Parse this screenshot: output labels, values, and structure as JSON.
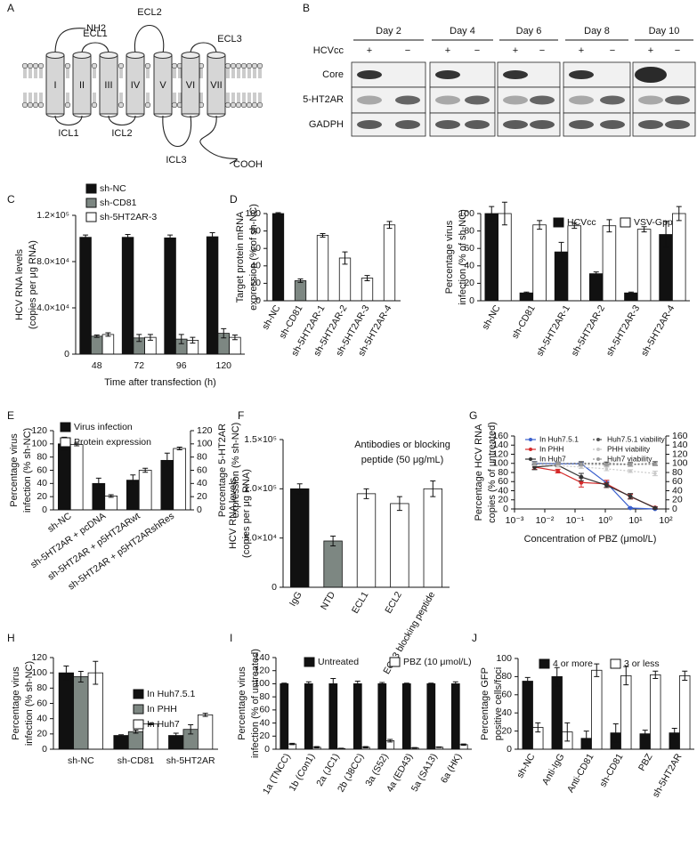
{
  "diagram": {
    "label": "A",
    "terminals": [
      "NH2",
      "COOH"
    ],
    "loops": [
      "ECL1",
      "ECL2",
      "ECL3",
      "ICL1",
      "ICL2",
      "ICL3"
    ],
    "helices": [
      "I",
      "II",
      "III",
      "IV",
      "V",
      "VI",
      "VII"
    ]
  },
  "blot": {
    "label": "B",
    "days": [
      "Day 2",
      "Day 4",
      "Day 6",
      "Day 8",
      "Day 10"
    ],
    "rows": [
      "HCVcc",
      "Core",
      "5-HT2AR",
      "GADPH"
    ],
    "signs": [
      "+",
      "−"
    ]
  },
  "chart_data": [
    {
      "type": "bar",
      "label": "C",
      "ylabel": [
        "HCV RNA levels",
        "(copies per μg RNA)"
      ],
      "xlabel": "Time after transfection (h)",
      "categories": [
        "48",
        "72",
        "96",
        "120"
      ],
      "series": [
        {
          "name": "sh-NC",
          "color": "#111111",
          "values": [
            101000,
            101000,
            100500,
            101500
          ],
          "errors": [
            2000,
            2500,
            2500,
            3500
          ]
        },
        {
          "name": "sh-CD81",
          "color": "#7d8782",
          "values": [
            15500,
            14000,
            13000,
            18000
          ],
          "errors": [
            1000,
            3000,
            4000,
            4000
          ]
        },
        {
          "name": "sh-5HT2AR-3",
          "color": "#ffffff",
          "values": [
            17000,
            14500,
            12000,
            14500
          ],
          "errors": [
            1500,
            2500,
            2500,
            2000
          ]
        }
      ],
      "ylim": [
        0,
        120000
      ],
      "yticks": [
        0,
        {
          "value": 40000,
          "label": "4.0×10⁴"
        },
        {
          "value": 80000,
          "label": "8.0×10⁴"
        },
        {
          "value": 120000,
          "label": "1.2×10⁵"
        }
      ]
    },
    {
      "type": "bar",
      "label": "D",
      "ylabel": [
        "Target protein mRNA",
        "expression (% of sh-NC)"
      ],
      "categories": [
        "sh-NC",
        "sh-CD81",
        "sh-5HT2AR-1",
        "sh-5HT2AR-2",
        "sh-5HT2AR-3",
        "sh-5HT2AR-4"
      ],
      "values": [
        100,
        23,
        75,
        49,
        26,
        87
      ],
      "errors": [
        1,
        2,
        2,
        7,
        3,
        4
      ],
      "colors": [
        "#111111",
        "#7d8782",
        "#ffffff",
        "#ffffff",
        "#ffffff",
        "#ffffff"
      ],
      "ylim": [
        0,
        100
      ],
      "yticks": [
        0,
        20,
        40,
        60,
        80,
        100
      ]
    },
    {
      "type": "bar",
      "ylabel": [
        "Percentage virus",
        "infection (% of sh-NC)"
      ],
      "categories": [
        "sh-NC",
        "sh-CD81",
        "sh-5HT2AR-1",
        "sh-5HT2AR-2",
        "sh-5HT2AR-3",
        "sh-5HT2AR-4"
      ],
      "series": [
        {
          "name": "HCVcc",
          "color": "#111111",
          "values": [
            100,
            9,
            56,
            31,
            9,
            76
          ],
          "errors": [
            8,
            1,
            11,
            2,
            1,
            15
          ]
        },
        {
          "name": "VSV-Gpp",
          "color": "#ffffff",
          "values": [
            100,
            87,
            86,
            86,
            82,
            100
          ],
          "errors": [
            13,
            5,
            3,
            7,
            3,
            8
          ]
        }
      ],
      "ylim": [
        0,
        100
      ],
      "yticks": [
        0,
        20,
        40,
        60,
        80,
        100
      ]
    },
    {
      "type": "bar",
      "label": "E",
      "ylabel": [
        "Percentage virus",
        "infection (% sh-NC)"
      ],
      "y2label": [
        "Percentage 5-HT2AR",
        "expression (% sh-NC)"
      ],
      "categories": [
        "sh-NC",
        "sh-5HT2AR + pcDNA",
        "sh-5HT2AR + p5HT2ARwt",
        "sh-5HT2AR + p5HT2ARshRes"
      ],
      "series": [
        {
          "name": "Virus infection",
          "color": "#111111",
          "values": [
            100,
            40,
            45,
            75
          ],
          "errors": [
            10,
            8,
            8,
            11
          ]
        },
        {
          "name": "Protein expression",
          "color": "#ffffff",
          "axis": "y2",
          "values": [
            99,
            21,
            60,
            93
          ],
          "errors": [
            2,
            2,
            3,
            2
          ]
        }
      ],
      "ylim": [
        0,
        120
      ],
      "yticks": [
        0,
        20,
        40,
        60,
        80,
        100,
        120
      ],
      "y2lim": [
        0,
        120
      ],
      "y2ticks": [
        0,
        20,
        40,
        60,
        80,
        100,
        120
      ]
    },
    {
      "type": "bar",
      "label": "F",
      "ylabel": [
        "HCV RNA levels",
        "(copies per μg RNA)"
      ],
      "annotation": [
        "Antibodies or blocking",
        "peptide (50 μg/mL)"
      ],
      "categories": [
        "IgG",
        "NTD",
        "ECL1",
        "ECL2",
        "ECL3 blocking peptide"
      ],
      "values": [
        100000,
        47000,
        95000,
        85000,
        100000
      ],
      "errors": [
        5000,
        5000,
        5000,
        7000,
        8000
      ],
      "colors": [
        "#111111",
        "#7d8782",
        "#ffffff",
        "#ffffff",
        "#ffffff"
      ],
      "ylim": [
        0,
        150000
      ],
      "yticks": [
        0,
        {
          "value": 50000,
          "label": "5.0×10⁴"
        },
        {
          "value": 100000,
          "label": "1.0×10⁵"
        },
        {
          "value": 150000,
          "label": "1.5×10⁵"
        }
      ]
    },
    {
      "type": "line",
      "label": "G",
      "ylabel": [
        "Percentage HCV RNA",
        "copies (% of untreated)"
      ],
      "xlabel": "Concentration of PBZ (μmol/L)",
      "xscale": "log",
      "x": [
        0.0046,
        0.027,
        0.16,
        1.1,
        6.7,
        44
      ],
      "series": [
        {
          "name": "In Huh7.5.1",
          "color": "#3a5fcd",
          "values": [
            100,
            99,
            99,
            57,
            2,
            0
          ],
          "errors": [
            4,
            3,
            4,
            3,
            1,
            1
          ]
        },
        {
          "name": "In PHH",
          "color": "#d42a2a",
          "values": [
            92,
            83,
            58,
            55,
            27,
            3
          ],
          "errors": [
            5,
            4,
            10,
            8,
            5,
            2
          ]
        },
        {
          "name": "In Huh7",
          "color": "#333333",
          "values": [
            92,
            96,
            70,
            52,
            28,
            2
          ],
          "errors": [
            6,
            3,
            8,
            5,
            6,
            2
          ]
        },
        {
          "name": "Huh7.5.1 viability",
          "color": "#555555",
          "dashed": true,
          "axis": "y2",
          "values": [
            100,
            100,
            100,
            100,
            98,
            100
          ],
          "errors": [
            4,
            3,
            4,
            3,
            4,
            4
          ]
        },
        {
          "name": "PHH viability",
          "color": "#c8c8c8",
          "dashed": true,
          "axis": "y2",
          "values": [
            98,
            95,
            92,
            88,
            83,
            78
          ],
          "errors": [
            3,
            3,
            3,
            4,
            3,
            5
          ]
        },
        {
          "name": "Huh7 viability",
          "color": "#999999",
          "dashed": true,
          "axis": "y2",
          "values": [
            100,
            100,
            98,
            97,
            97,
            98
          ],
          "errors": [
            3,
            3,
            3,
            3,
            3,
            3
          ]
        }
      ],
      "xlim": [
        0.001,
        100
      ],
      "xticks": [
        {
          "value": 0.001,
          "label": "10⁻³"
        },
        {
          "value": 0.01,
          "label": "10⁻²"
        },
        {
          "value": 0.1,
          "label": "10⁻¹"
        },
        {
          "value": 1,
          "label": "10⁰"
        },
        {
          "value": 10,
          "label": "10¹"
        },
        {
          "value": 100,
          "label": "10²"
        }
      ],
      "ylim": [
        0,
        160
      ],
      "yticks": [
        0,
        20,
        40,
        60,
        80,
        100,
        120,
        140,
        160
      ],
      "y2lim": [
        0,
        160
      ],
      "y2ticks": [
        0,
        20,
        40,
        60,
        80,
        100,
        120,
        140,
        160
      ]
    },
    {
      "type": "bar",
      "label": "H",
      "ylabel": [
        "Percentage virus",
        "infection (% sh-NC)"
      ],
      "categories": [
        "sh-NC",
        "sh-CD81",
        "sh-5HT2AR"
      ],
      "series": [
        {
          "name": "In Huh7.5.1",
          "color": "#111111",
          "values": [
            100,
            18,
            18
          ],
          "errors": [
            9,
            1,
            3
          ]
        },
        {
          "name": "In PHH",
          "color": "#7d8782",
          "values": [
            95,
            23,
            26
          ],
          "errors": [
            7,
            2,
            6
          ]
        },
        {
          "name": "In Huh7",
          "color": "#ffffff",
          "values": [
            100,
            33,
            45
          ],
          "errors": [
            15,
            1,
            2
          ]
        }
      ],
      "ylim": [
        0,
        120
      ],
      "yticks": [
        0,
        20,
        40,
        60,
        80,
        100,
        120
      ]
    },
    {
      "type": "bar",
      "label": "I",
      "ylabel": [
        "Percentage virus",
        "infection (% of untreated)"
      ],
      "categories": [
        "1a (TNCC)",
        "1b (Con1)",
        "2a (JC1)",
        "2b (J8CC)",
        "3a (S52)",
        "4a (ED43)",
        "5a (SA13)",
        "6a (HK)"
      ],
      "series": [
        {
          "name": "Untreated",
          "color": "#111111",
          "values": [
            100,
            100,
            100,
            100,
            100,
            100,
            100,
            100
          ],
          "errors": [
            1,
            3,
            8,
            4,
            2,
            1,
            1,
            3
          ]
        },
        {
          "name": "PBZ (10 μmol/L)",
          "color": "#ffffff",
          "values": [
            8,
            3,
            1,
            3,
            13,
            2,
            3,
            7
          ],
          "errors": [
            1,
            1,
            0.5,
            1,
            2,
            0.5,
            0.5,
            1
          ]
        }
      ],
      "ylim": [
        0,
        140
      ],
      "yticks": [
        0,
        20,
        40,
        60,
        80,
        100,
        120,
        140
      ]
    },
    {
      "type": "bar",
      "label": "J",
      "ylabel": [
        "Percentage GFP",
        "positive cells/foci"
      ],
      "categories": [
        "sh-NC",
        "Anti-IgG",
        "Anti-CD81",
        "sh-CD81",
        "PBZ",
        "sh-5HT2AR"
      ],
      "series": [
        {
          "name": "4 or more",
          "color": "#111111",
          "values": [
            75,
            80,
            12,
            18,
            17,
            18
          ],
          "errors": [
            4,
            10,
            8,
            10,
            4,
            5
          ]
        },
        {
          "name": "3 or less",
          "color": "#ffffff",
          "values": [
            24,
            19,
            87,
            81,
            82,
            81
          ],
          "errors": [
            5,
            10,
            7,
            10,
            4,
            5
          ]
        }
      ],
      "ylim": [
        0,
        100
      ],
      "yticks": [
        0,
        20,
        40,
        60,
        80,
        100
      ]
    }
  ]
}
